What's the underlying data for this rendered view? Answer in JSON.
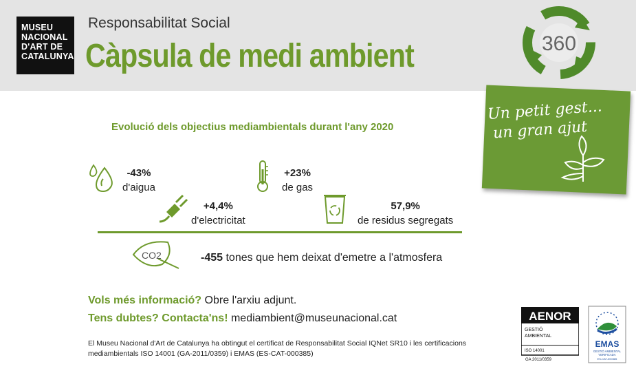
{
  "header": {
    "logo_lines": [
      "MUSEU",
      "NACIONAL",
      "D'ART DE",
      "CATALUNYA"
    ],
    "subtitle": "Responsabilitat Social",
    "title": "Càpsula de medi ambient",
    "badge_text": "360"
  },
  "note": {
    "line1": "Un petit gest...",
    "line2": "un gran ajut"
  },
  "section_heading": "Evolució dels objectius mediambientals durant l'any 2020",
  "stats": {
    "water": {
      "value": "-43%",
      "label": "d'aigua",
      "icon": "water-drop-icon"
    },
    "gas": {
      "value": "+23%",
      "label": "de gas",
      "icon": "thermometer-icon"
    },
    "electricity": {
      "value": "+4,4%",
      "label": "d'electricitat",
      "icon": "plug-icon"
    },
    "waste": {
      "value": "57,9%",
      "label": "de residus segregats",
      "icon": "recycle-bin-icon"
    }
  },
  "co2": {
    "icon_text": "CO2",
    "value": "-455",
    "text": " tones que hem deixat d'emetre a l'atmosfera"
  },
  "info": {
    "q1": "Vols més informació?",
    "a1": " Obre l'arxiu adjunt.",
    "q2": "Tens dubtes? Contacta'ns!",
    "a2": " mediambient@museunacional.cat"
  },
  "footer": {
    "line1": "El Museu Nacional d'Art de Catalunya ha obtingut el certificat de Responsabilitat Social IQNet SR10 i les certificacions",
    "line2": "mediambientals ISO 14001 (GA-2011/0359) i EMAS (ES-CAT-000385)"
  },
  "certs": {
    "aenor_title": "AENOR",
    "aenor_sub1": "GESTIÓ",
    "aenor_sub2": "AMBIENTAL",
    "aenor_iso": "ISO 14001",
    "aenor_code": "GA 2011/0359",
    "emas_title": "EMAS",
    "emas_sub1": "GESTIÓ AMBIENTAL",
    "emas_sub2": "VERIFICADA",
    "emas_code": "ES-CAT-000385"
  },
  "colors": {
    "accent_green": "#6e9a2c",
    "note_green": "#6b9a35",
    "header_gray": "#e4e4e4",
    "badge_green": "#4f8a2a"
  }
}
